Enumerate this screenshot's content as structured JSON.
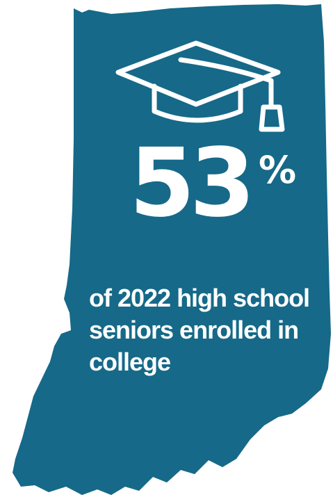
{
  "stat": {
    "value": "53",
    "suffix": "%"
  },
  "caption": "of 2022 high school seniors enrolled in college",
  "colors": {
    "map_fill": "#166988",
    "foreground": "#ffffff"
  },
  "icons": {
    "graduation": "graduation-cap-icon",
    "map": "indiana-map-shape"
  }
}
